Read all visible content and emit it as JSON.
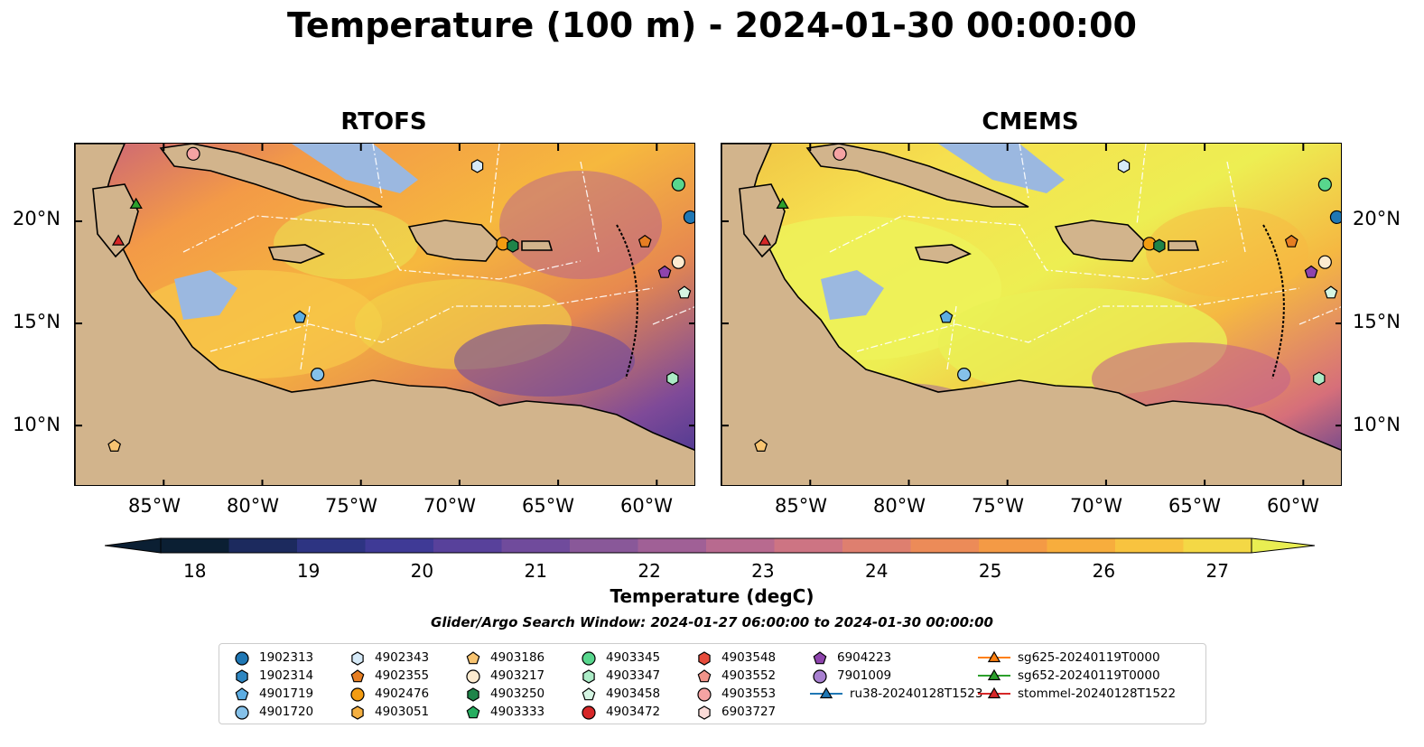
{
  "title": "Temperature (100 m) - 2024-01-30 00:00:00",
  "panels": [
    {
      "title": "RTOFS"
    },
    {
      "title": "CMEMS"
    }
  ],
  "axes": {
    "lon_ticks": [
      "85°W",
      "80°W",
      "75°W",
      "70°W",
      "65°W",
      "60°W"
    ],
    "lat_ticks": [
      "20°N",
      "15°N",
      "10°N"
    ],
    "lon_range": [
      -89.5,
      -58.0
    ],
    "lat_range": [
      7.0,
      23.8
    ]
  },
  "colorbar": {
    "label": "Temperature (degC)",
    "ticks": [
      "18",
      "19",
      "20",
      "21",
      "22",
      "23",
      "24",
      "25",
      "26",
      "27"
    ],
    "range": [
      18,
      27
    ],
    "extend": "both",
    "colors": [
      "#0b1f33",
      "#1c2a5e",
      "#2d3482",
      "#3f3a96",
      "#58419b",
      "#704b9c",
      "#895899",
      "#a06096",
      "#b86a8f",
      "#cd7483",
      "#de7f6f",
      "#ec8b58",
      "#f49a45",
      "#f7ad3d",
      "#f8c33f",
      "#f4d845",
      "#e9ee52"
    ]
  },
  "search_window": "Glider/Argo Search Window: 2024-01-27 06:00:00 to 2024-01-30 00:00:00",
  "legend": [
    {
      "label": "1902313",
      "marker": "circle",
      "color": "#1f77b4"
    },
    {
      "label": "1902314",
      "marker": "hexagon",
      "color": "#2e86c1"
    },
    {
      "label": "4901719",
      "marker": "pentagon",
      "color": "#5dade2"
    },
    {
      "label": "4901720",
      "marker": "circle",
      "color": "#85c1e9"
    },
    {
      "label": "4902343",
      "marker": "hexagon",
      "color": "#d6eaf8"
    },
    {
      "label": "4902355",
      "marker": "pentagon",
      "color": "#e67e22"
    },
    {
      "label": "4902476",
      "marker": "circle",
      "color": "#f39c12"
    },
    {
      "label": "4903051",
      "marker": "hexagon",
      "color": "#f5b041"
    },
    {
      "label": "4903186",
      "marker": "pentagon",
      "color": "#f8c471"
    },
    {
      "label": "4903217",
      "marker": "circle",
      "color": "#fdebd0"
    },
    {
      "label": "4903250",
      "marker": "hexagon",
      "color": "#1e8449"
    },
    {
      "label": "4903333",
      "marker": "pentagon",
      "color": "#27ae60"
    },
    {
      "label": "4903345",
      "marker": "circle",
      "color": "#58d68d"
    },
    {
      "label": "4903347",
      "marker": "hexagon",
      "color": "#abebc6"
    },
    {
      "label": "4903458",
      "marker": "pentagon",
      "color": "#d5f5e3"
    },
    {
      "label": "4903472",
      "marker": "circle",
      "color": "#d62728"
    },
    {
      "label": "4903548",
      "marker": "hexagon",
      "color": "#e74c3c"
    },
    {
      "label": "4903552",
      "marker": "pentagon",
      "color": "#f1948a"
    },
    {
      "label": "4903553",
      "marker": "circle",
      "color": "#f5a3a3"
    },
    {
      "label": "6903727",
      "marker": "hexagon",
      "color": "#fadbd8"
    },
    {
      "label": "6904223",
      "marker": "pentagon",
      "color": "#8e44ad"
    },
    {
      "label": "7901009",
      "marker": "circle",
      "color": "#a880d0"
    },
    {
      "label": "ru38-20240128T1523",
      "marker": "triangle-line",
      "color": "#1f77b4"
    },
    {
      "label": "sg625-20240119T0000",
      "marker": "triangle-line",
      "color": "#ff7f0e"
    },
    {
      "label": "sg652-20240119T0000",
      "marker": "triangle-line",
      "color": "#2ca02c"
    },
    {
      "label": "stommel-20240128T1522",
      "marker": "triangle-line",
      "color": "#d62728"
    }
  ],
  "markers_on_map": [
    {
      "id": "1902313",
      "lon": -58.3,
      "lat": 20.2
    },
    {
      "id": "4901719",
      "lon": -78.1,
      "lat": 15.3
    },
    {
      "id": "4901720",
      "lon": -77.2,
      "lat": 12.5
    },
    {
      "id": "4902343",
      "lon": -69.1,
      "lat": 22.7
    },
    {
      "id": "4902355",
      "lon": -60.6,
      "lat": 19.0
    },
    {
      "id": "4902476",
      "lon": -67.8,
      "lat": 18.9
    },
    {
      "id": "4903186",
      "lon": -87.5,
      "lat": 9.0
    },
    {
      "id": "4903217",
      "lon": -58.9,
      "lat": 18.0
    },
    {
      "id": "4903250",
      "lon": -67.3,
      "lat": 18.8
    },
    {
      "id": "4903345",
      "lon": -58.9,
      "lat": 21.8
    },
    {
      "id": "4903347",
      "lon": -59.2,
      "lat": 12.3
    },
    {
      "id": "4903458",
      "lon": -58.6,
      "lat": 16.5
    },
    {
      "id": "4903553",
      "lon": -83.5,
      "lat": 23.3
    },
    {
      "id": "6904223",
      "lon": -59.6,
      "lat": 17.5
    },
    {
      "id": "sg652-20240119T0000",
      "lon": -86.4,
      "lat": 20.8
    },
    {
      "id": "stommel-20240128T1522",
      "lon": -87.3,
      "lat": 19.0
    }
  ]
}
